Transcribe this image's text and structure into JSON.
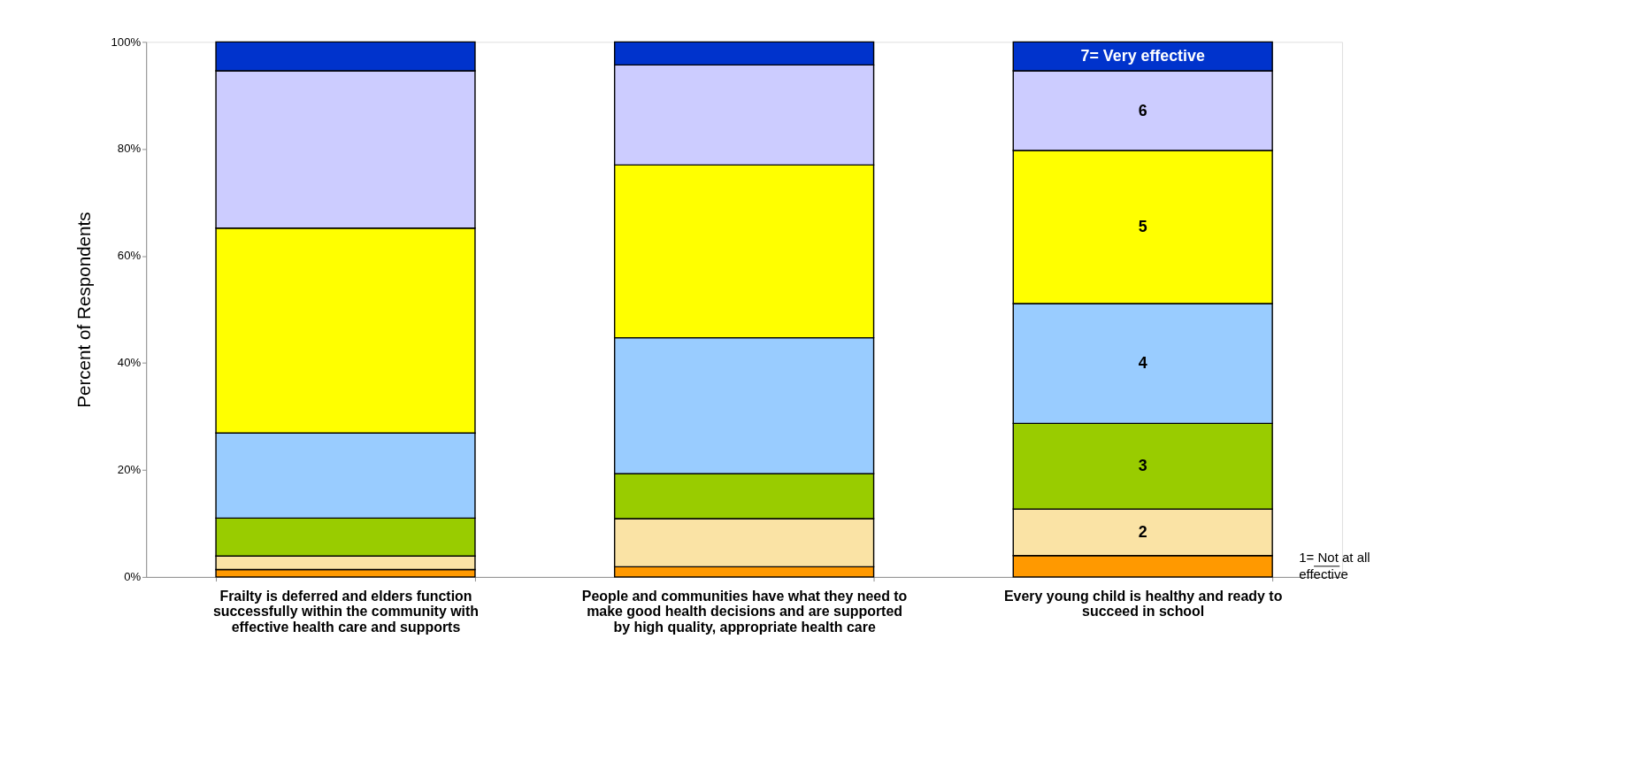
{
  "chart_data": {
    "type": "bar",
    "stacked": true,
    "ylabel": "Percent of Respondents",
    "categories": [
      "Frailty is deferred and elders function successfully within the community with effective health care and supports",
      "People and communities have what they need to make good health decisions and are supported by high quality, appropriate health care",
      "Every young child is healthy and ready to succeed in school"
    ],
    "series": [
      {
        "name": "1= Not at all effective",
        "color": "#ff9900",
        "values": [
          1.4,
          1.9,
          4.0
        ]
      },
      {
        "name": "2",
        "color": "#fae3a5",
        "values": [
          2.5,
          9.0,
          8.7
        ]
      },
      {
        "name": "3",
        "color": "#99cc00",
        "values": [
          7.1,
          8.4,
          16.0
        ]
      },
      {
        "name": "4",
        "color": "#99ccff",
        "values": [
          15.9,
          25.4,
          22.4
        ]
      },
      {
        "name": "5",
        "color": "#ffff00",
        "values": [
          38.3,
          32.3,
          28.6
        ]
      },
      {
        "name": "6",
        "color": "#ccccff",
        "values": [
          29.4,
          18.7,
          14.9
        ]
      },
      {
        "name": "7= Very effective",
        "color": "#0033cc",
        "values": [
          5.4,
          4.3,
          5.4
        ]
      }
    ],
    "ylim": [
      0,
      100
    ],
    "yticks": [
      {
        "value": 0,
        "label": "0%"
      },
      {
        "value": 20,
        "label": "20%"
      },
      {
        "value": 40,
        "label": "40%"
      },
      {
        "value": 60,
        "label": "60%"
      },
      {
        "value": 80,
        "label": "80%"
      },
      {
        "value": 100,
        "label": "100%"
      }
    ],
    "grid": false,
    "legend": false
  }
}
